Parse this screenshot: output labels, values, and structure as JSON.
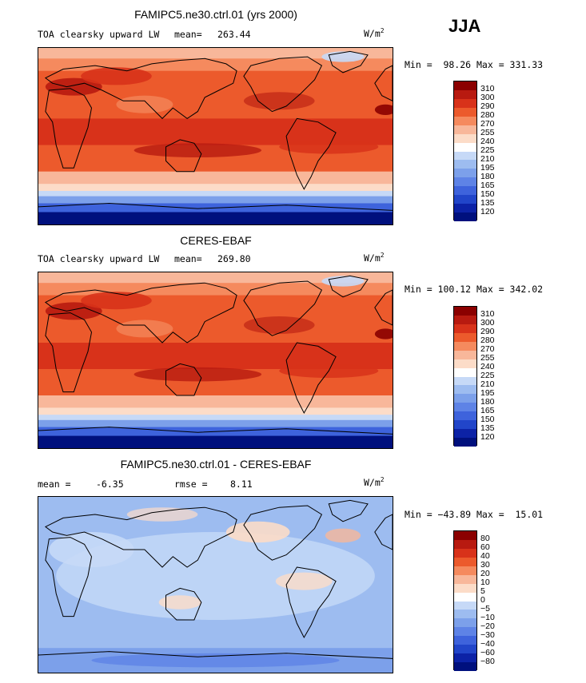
{
  "season": "JJA",
  "units_base": "W/m",
  "units_exp": "2",
  "land_color": "#000000",
  "panels": [
    {
      "id": "model",
      "title": "FAMIPC5.ne30.ctrl.01 (yrs 2000)",
      "field": "TOA clearsky upward LW",
      "mean_label": "mean=",
      "mean_value": "263.44",
      "minmax": "Min =  98.26 Max = 331.33",
      "levels": [
        "310",
        "300",
        "290",
        "280",
        "270",
        "255",
        "240",
        "225",
        "210",
        "195",
        "180",
        "165",
        "150",
        "135",
        "120"
      ],
      "colors": [
        "#8b0000",
        "#b81a10",
        "#d8321a",
        "#ec5a2c",
        "#f58a5e",
        "#f8b79a",
        "#fcdcc8",
        "#ffffff",
        "#c6d9f7",
        "#9dbcf0",
        "#7ca0ea",
        "#5e83e6",
        "#3e63dc",
        "#2145c9",
        "#0c22a6",
        "#00107d"
      ]
    },
    {
      "id": "obs",
      "title": "CERES-EBAF",
      "field": "TOA clearsky upward LW",
      "mean_label": "mean=",
      "mean_value": "269.80",
      "minmax": "Min = 100.12 Max = 342.02",
      "levels": [
        "310",
        "300",
        "290",
        "280",
        "270",
        "255",
        "240",
        "225",
        "210",
        "195",
        "180",
        "165",
        "150",
        "135",
        "120"
      ],
      "colors": [
        "#8b0000",
        "#b81a10",
        "#d8321a",
        "#ec5a2c",
        "#f58a5e",
        "#f8b79a",
        "#fcdcc8",
        "#ffffff",
        "#c6d9f7",
        "#9dbcf0",
        "#7ca0ea",
        "#5e83e6",
        "#3e63dc",
        "#2145c9",
        "#0c22a6",
        "#00107d"
      ]
    },
    {
      "id": "diff",
      "title": "FAMIPC5.ne30.ctrl.01 - CERES-EBAF",
      "mean_label": "mean =",
      "mean_value": "-6.35",
      "rmse_label": "rmse =",
      "rmse_value": "8.11",
      "minmax": "Min = −43.89 Max =  15.01",
      "levels": [
        "80",
        "60",
        "40",
        "30",
        "20",
        "10",
        "5",
        "0",
        "−5",
        "−10",
        "−20",
        "−30",
        "−40",
        "−60",
        "−80"
      ],
      "colors": [
        "#8b0000",
        "#b81a10",
        "#d8321a",
        "#ec5a2c",
        "#f58a5e",
        "#f8b79a",
        "#fcdcc8",
        "#ffffff",
        "#c6d9f7",
        "#9dbcf0",
        "#7ca0ea",
        "#5e83e6",
        "#3e63dc",
        "#2145c9",
        "#0c22a6",
        "#00107d"
      ]
    }
  ],
  "chart_data": [
    {
      "type": "heatmap",
      "title": "FAMIPC5.ne30.ctrl.01 (yrs 2000)",
      "subtitle": "TOA clearsky upward LW",
      "mean": 263.44,
      "min": 98.26,
      "max": 331.33,
      "units": "W/m2",
      "contour_levels": [
        120,
        135,
        150,
        165,
        180,
        195,
        210,
        225,
        240,
        255,
        270,
        280,
        290,
        300,
        310
      ],
      "legend": "right"
    },
    {
      "type": "heatmap",
      "title": "CERES-EBAF",
      "subtitle": "TOA clearsky upward LW",
      "mean": 269.8,
      "min": 100.12,
      "max": 342.02,
      "units": "W/m2",
      "contour_levels": [
        120,
        135,
        150,
        165,
        180,
        195,
        210,
        225,
        240,
        255,
        270,
        280,
        290,
        300,
        310
      ],
      "legend": "right"
    },
    {
      "type": "heatmap",
      "title": "FAMIPC5.ne30.ctrl.01 - CERES-EBAF",
      "mean": -6.35,
      "rmse": 8.11,
      "min": -43.89,
      "max": 15.01,
      "units": "W/m2",
      "contour_levels": [
        -80,
        -60,
        -40,
        -30,
        -20,
        -10,
        -5,
        0,
        5,
        10,
        20,
        30,
        40,
        60,
        80
      ],
      "legend": "right"
    }
  ]
}
